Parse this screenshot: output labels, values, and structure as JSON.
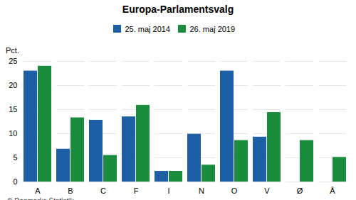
{
  "chart_data": {
    "type": "bar",
    "title": "Europa-Parlamentsvalg",
    "categories": [
      "A",
      "B",
      "C",
      "F",
      "I",
      "N",
      "O",
      "V",
      "Ø",
      "Å"
    ],
    "series": [
      {
        "name": "25. maj 2014",
        "color": "#1c5fa5",
        "values": [
          23.0,
          6.8,
          12.8,
          13.5,
          2.2,
          9.9,
          23.0,
          9.3,
          0.0,
          0.0
        ]
      },
      {
        "name": "26. maj 2019",
        "color": "#1a8c3e",
        "values": [
          24.0,
          13.3,
          5.5,
          15.9,
          2.2,
          3.5,
          8.6,
          14.4,
          8.6,
          5.1
        ]
      }
    ],
    "ylabel": "Pct.",
    "ylim": [
      0,
      25
    ],
    "yticks": [
      0,
      5,
      10,
      15,
      20,
      25
    ],
    "grid": true,
    "legend": "top",
    "annotations": [
      "© Danmarks Statistik"
    ]
  }
}
